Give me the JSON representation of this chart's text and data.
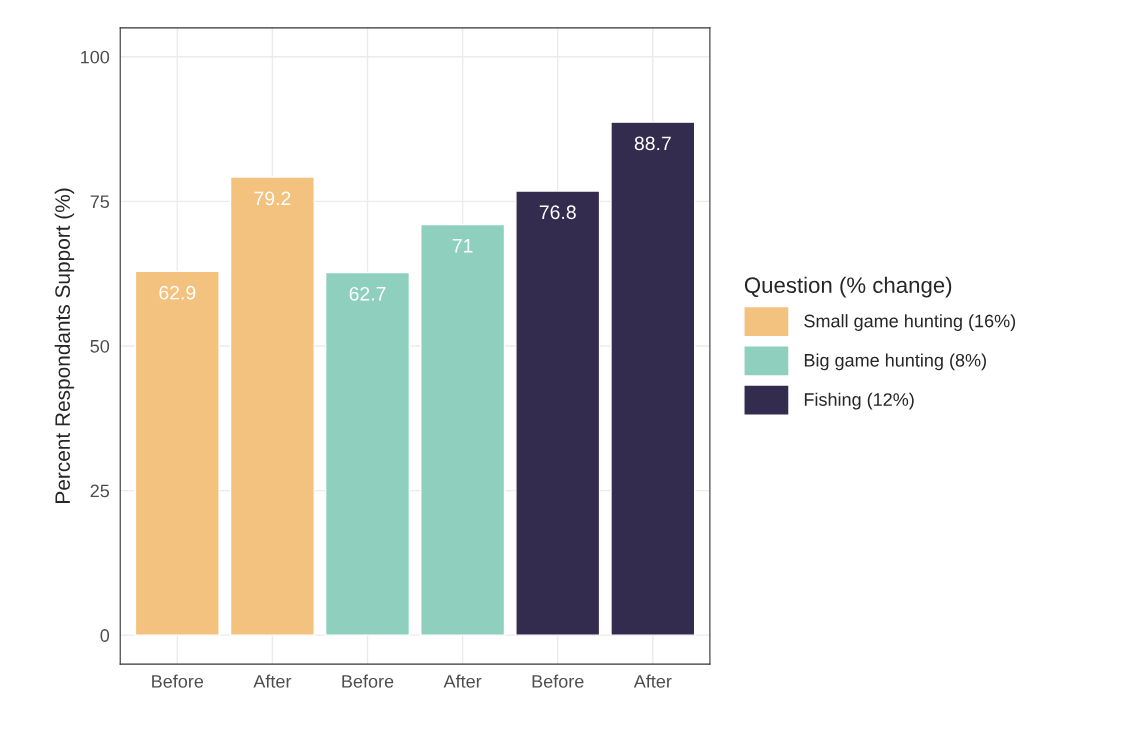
{
  "chart_data": {
    "type": "bar",
    "ylabel": "Percent Respondants Support (%)",
    "legend_title": "Question (% change)",
    "categories": [
      "Before",
      "After",
      "Before",
      "After",
      "Before",
      "After"
    ],
    "series": [
      {
        "name": "Small game hunting (16%)",
        "color": "#f4c27f",
        "values": [
          62.9,
          79.2,
          null,
          null,
          null,
          null
        ]
      },
      {
        "name": "Big game hunting (8%)",
        "color": "#8ecfbd",
        "values": [
          null,
          null,
          62.7,
          71,
          null,
          null
        ]
      },
      {
        "name": "Fishing (12%)",
        "color": "#332c4e",
        "values": [
          null,
          null,
          null,
          null,
          76.8,
          88.7
        ]
      }
    ],
    "ylim": [
      -5,
      105
    ],
    "yticks": [
      0,
      25,
      50,
      75,
      100
    ],
    "grid": true,
    "legend": "right",
    "data_labels": true
  }
}
